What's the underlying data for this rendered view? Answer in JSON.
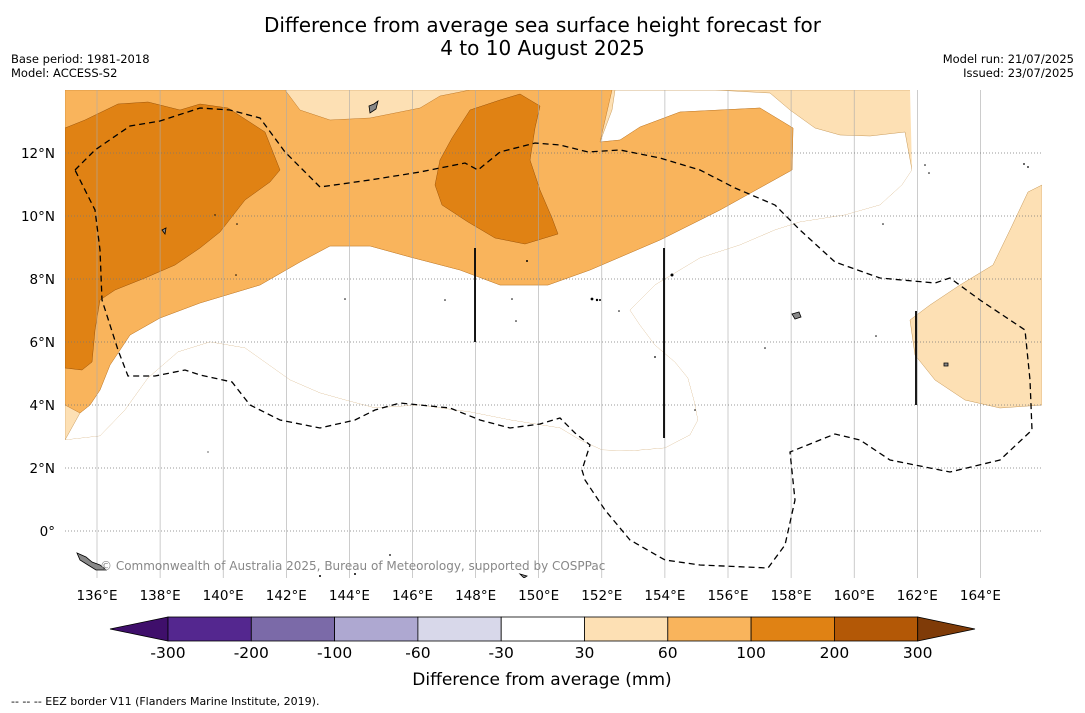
{
  "header": {
    "title_line1": "Difference from average sea surface height forecast for",
    "title_line2": "4 to 10 August 2025",
    "base_period": "Base period: 1981-2018",
    "model": "Model: ACCESS-S2",
    "model_run": "Model run: 21/07/2025",
    "issued": "Issued: 23/07/2025"
  },
  "map": {
    "lon_labels": [
      "136°E",
      "138°E",
      "140°E",
      "142°E",
      "144°E",
      "146°E",
      "148°E",
      "150°E",
      "152°E",
      "154°E",
      "156°E",
      "158°E",
      "160°E",
      "162°E",
      "164°E"
    ],
    "lat_labels": [
      "12°N",
      "10°N",
      "8°N",
      "6°N",
      "4°N",
      "2°N",
      "0°"
    ],
    "credit": "© Commonwealth of Australia 2025, Bureau of Meteorology, supported by COSPPac"
  },
  "legend": {
    "title": "Difference from average (mm)",
    "ticks": [
      "-300",
      "-200",
      "-100",
      "-60",
      "-30",
      "30",
      "60",
      "100",
      "200",
      "300"
    ],
    "colors": [
      "#3f0f6b",
      "#54278f",
      "#7b6aa8",
      "#aea8d1",
      "#d8d8ea",
      "#ffffff",
      "#fde0b4",
      "#f9b45c",
      "#e08214",
      "#b35806",
      "#7f3b08"
    ]
  },
  "footnote": "--  --  -- EEZ border V11 (Flanders Marine Institute, 2019)."
}
